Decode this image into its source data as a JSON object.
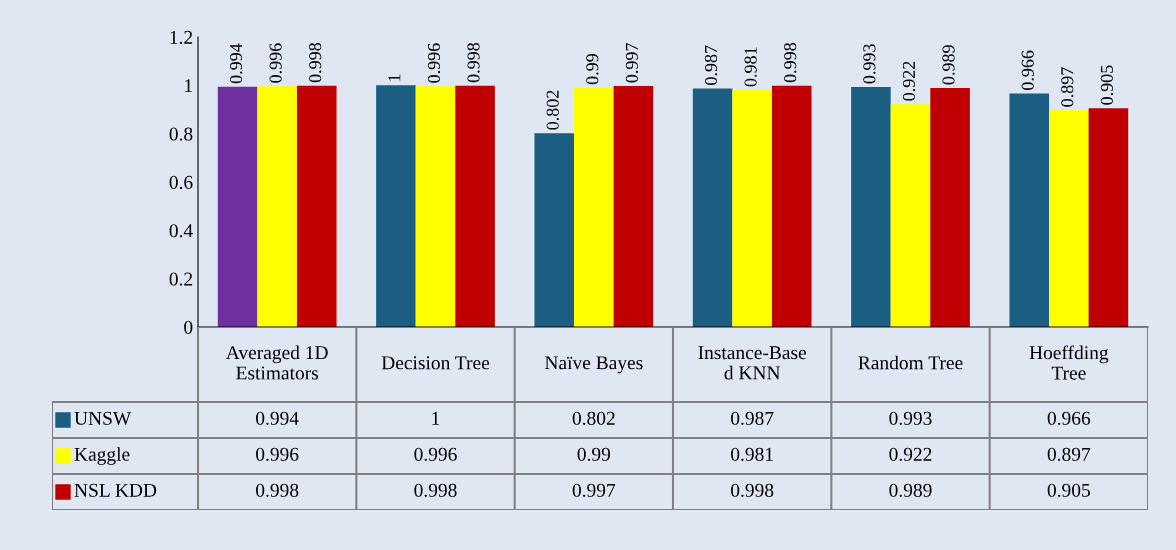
{
  "chart_data": {
    "type": "bar",
    "categories": [
      "Averaged 1D Estimators",
      "Decision Tree",
      "Naïve Bayes",
      "Instance-Based KNN",
      "Random Tree",
      "Hoeffding Tree"
    ],
    "series": [
      {
        "name": "UNSW",
        "color": "#1b5e82",
        "colors": [
          "#7030a0",
          "#1b5e82",
          "#1b5e82",
          "#1b5e82",
          "#1b5e82",
          "#1b5e82"
        ],
        "values": [
          0.994,
          1,
          0.802,
          0.987,
          0.993,
          0.966
        ],
        "value_labels": [
          "0.994",
          "1",
          "0.802",
          "0.987",
          "0.993",
          "0.966"
        ]
      },
      {
        "name": "Kaggle",
        "color": "#ffff00",
        "values": [
          0.996,
          0.996,
          0.99,
          0.981,
          0.922,
          0.897
        ],
        "value_labels": [
          "0.996",
          "0.996",
          "0.99",
          "0.981",
          "0.922",
          "0.897"
        ]
      },
      {
        "name": "NSL KDD",
        "color": "#c00000",
        "values": [
          0.998,
          0.998,
          0.997,
          0.998,
          0.989,
          0.905
        ],
        "value_labels": [
          "0.998",
          "0.998",
          "0.997",
          "0.998",
          "0.989",
          "0.905"
        ]
      }
    ],
    "ylim": [
      0,
      1.2
    ],
    "yticks": [
      0,
      0.2,
      0.4,
      0.6,
      0.8,
      1,
      1.2
    ],
    "annotations": [
      "0.994",
      "1",
      "0.802",
      "0.987",
      "0.993",
      "0.966",
      "0.996",
      "0.996",
      "0.99",
      "0.981",
      "0.922",
      "0.897",
      "0.998",
      "0.998",
      "0.997",
      "0.998",
      "0.989",
      "0.905"
    ],
    "legend": "bottom",
    "grid": false
  }
}
